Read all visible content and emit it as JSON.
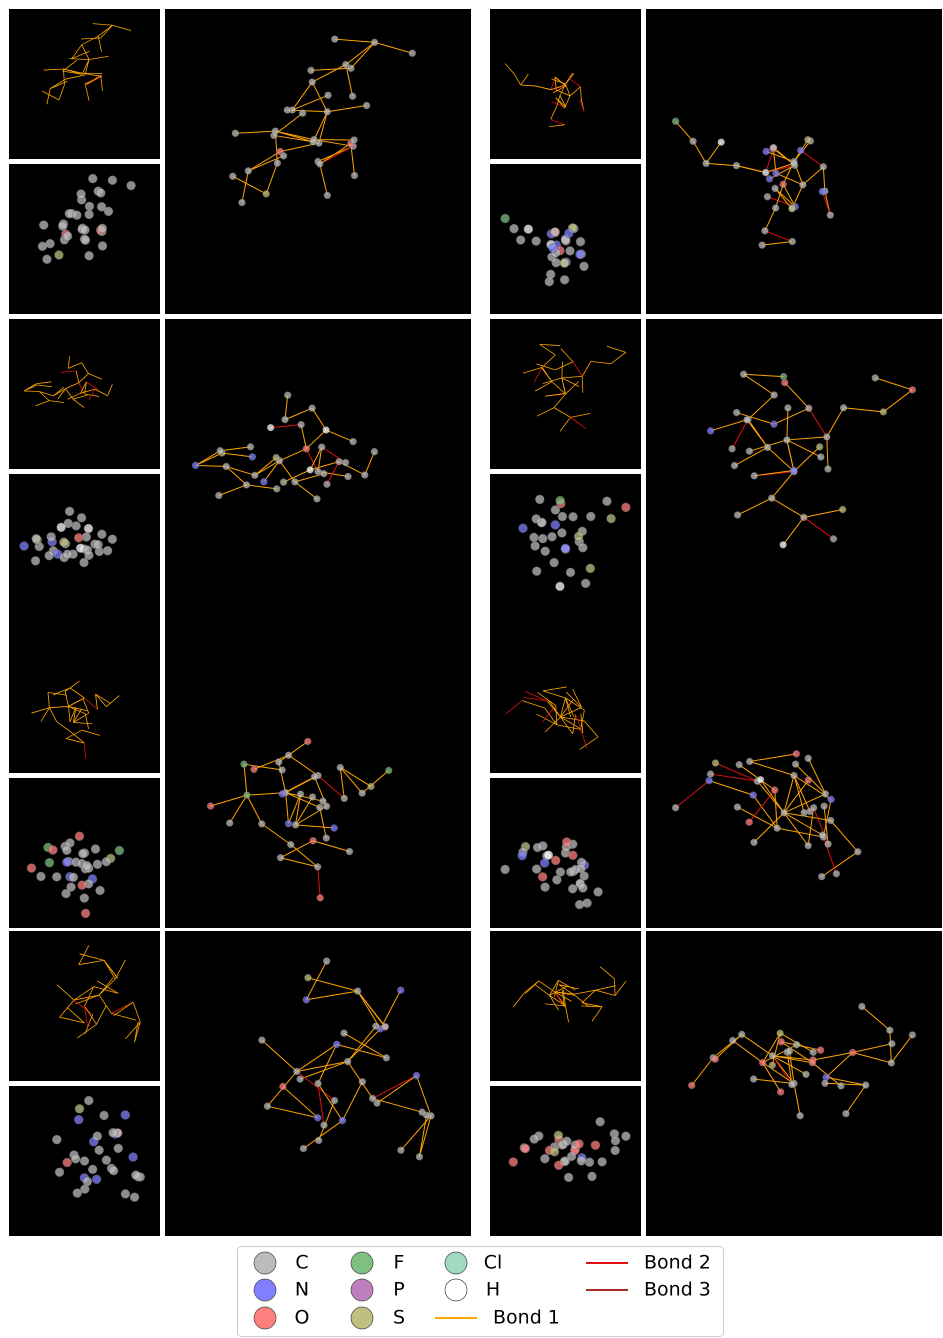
{
  "legend": {
    "atoms": [
      {
        "label": "C",
        "color": "#bbbbbb"
      },
      {
        "label": "N",
        "color": "#7f7fff"
      },
      {
        "label": "O",
        "color": "#ff7f7f"
      },
      {
        "label": "F",
        "color": "#7fbf7f"
      },
      {
        "label": "P",
        "color": "#bf7fbf"
      },
      {
        "label": "S",
        "color": "#bfbf7f"
      },
      {
        "label": "Cl",
        "color": "#9fd9bf"
      },
      {
        "label": "H",
        "color": "#ffffff"
      }
    ],
    "bonds": [
      {
        "label": "Bond 1",
        "color": "#ffa500"
      },
      {
        "label": "Bond 2",
        "color": "#e01010"
      },
      {
        "label": "Bond 3",
        "color": "#a52a2a"
      }
    ]
  }
}
